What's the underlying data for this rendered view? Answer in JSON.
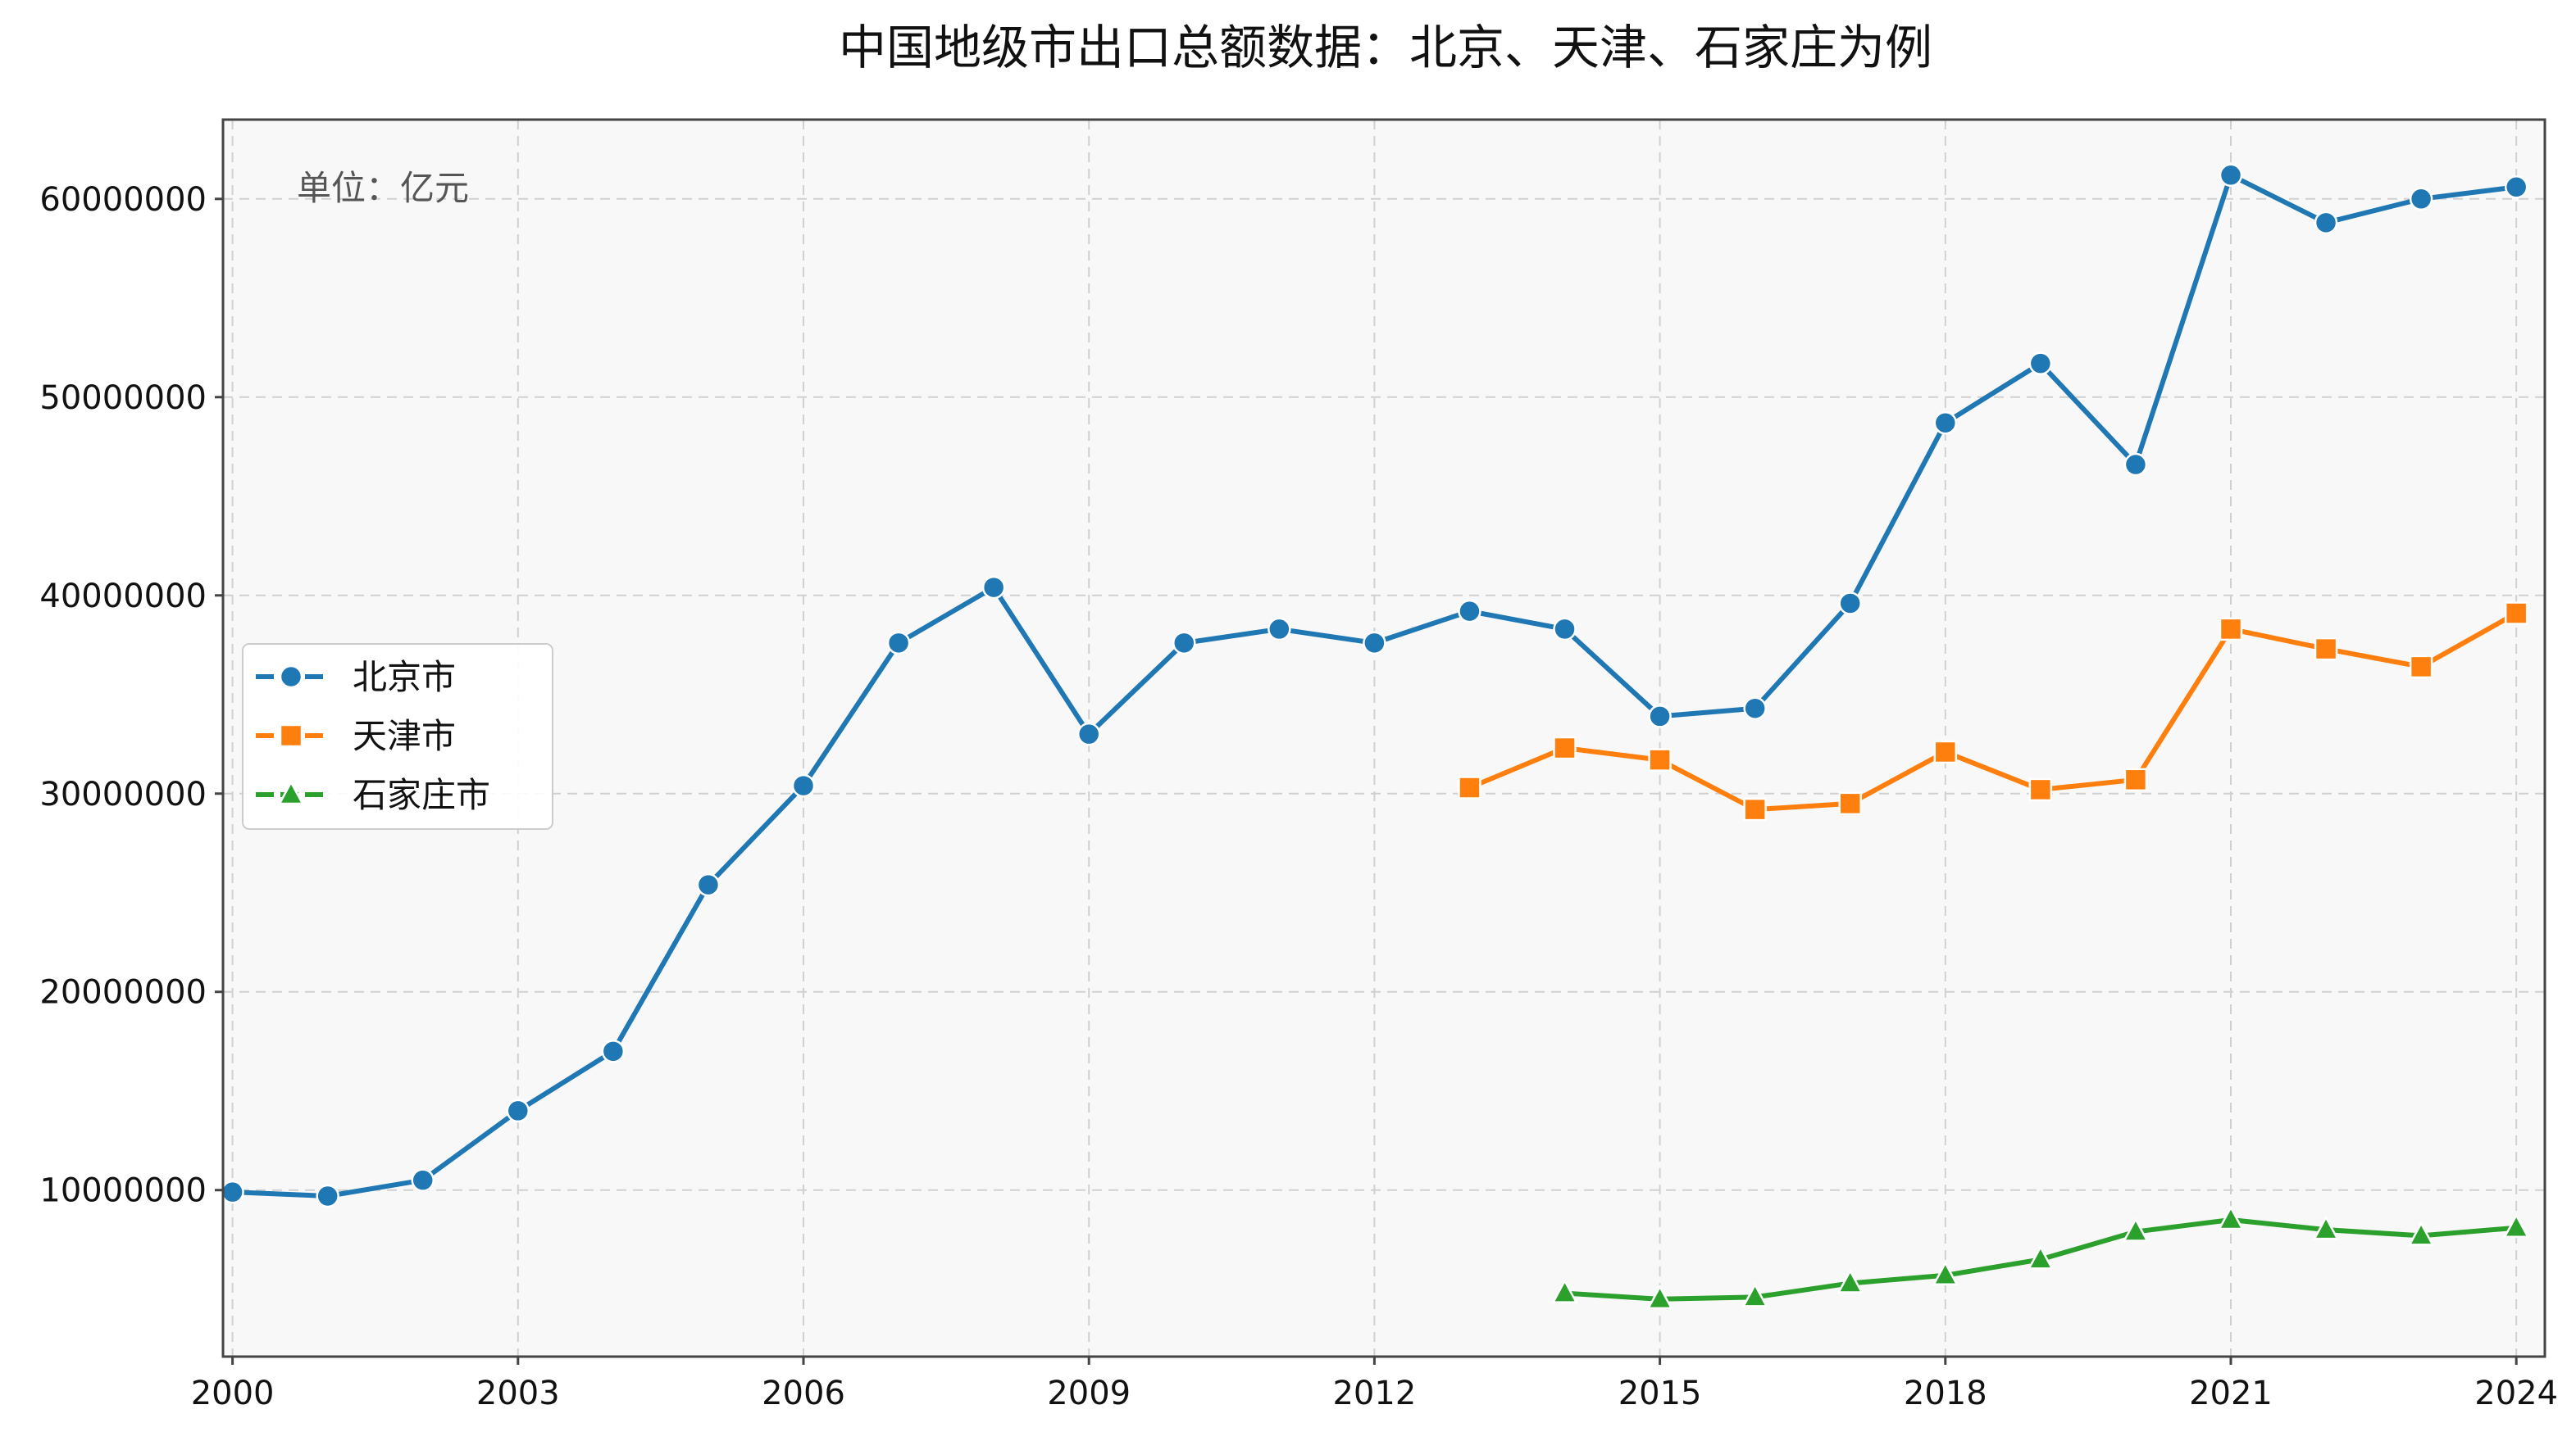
{
  "chart_data": {
    "type": "line",
    "title": "中国地级市出口总额数据：北京、天津、石家庄为例",
    "annotation": "单位：亿元",
    "xlabel": "",
    "ylabel": "",
    "xlim": [
      1999.9,
      2024.3
    ],
    "ylim": [
      1600000,
      64000000
    ],
    "xticks": [
      2000,
      2003,
      2006,
      2009,
      2012,
      2015,
      2018,
      2021,
      2024
    ],
    "yticks": [
      10000000,
      20000000,
      30000000,
      40000000,
      50000000,
      60000000
    ],
    "xtick_labels": [
      "2000",
      "2003",
      "2006",
      "2009",
      "2012",
      "2015",
      "2018",
      "2021",
      "2024"
    ],
    "ytick_labels": [
      "10000000",
      "20000000",
      "30000000",
      "40000000",
      "50000000",
      "60000000"
    ],
    "grid": true,
    "legend_position": "center-left",
    "series": [
      {
        "name": "北京市",
        "color": "#1f77b4",
        "marker": "circle",
        "x": [
          2000,
          2001,
          2002,
          2003,
          2004,
          2005,
          2006,
          2007,
          2008,
          2009,
          2010,
          2011,
          2012,
          2013,
          2014,
          2015,
          2016,
          2017,
          2018,
          2019,
          2020,
          2021,
          2022,
          2023,
          2024
        ],
        "values": [
          9900000,
          9700000,
          10500000,
          14000000,
          17000000,
          25400000,
          30400000,
          37600000,
          40400000,
          33000000,
          37600000,
          38300000,
          37600000,
          39200000,
          38300000,
          33900000,
          34300000,
          39600000,
          48700000,
          51700000,
          46600000,
          61200000,
          58800000,
          60000000,
          60600000
        ]
      },
      {
        "name": "天津市",
        "color": "#ff7f0e",
        "marker": "square",
        "x": [
          2013,
          2014,
          2015,
          2016,
          2017,
          2018,
          2019,
          2020,
          2021,
          2022,
          2023,
          2024
        ],
        "values": [
          30300000,
          32300000,
          31700000,
          29200000,
          29500000,
          32100000,
          30200000,
          30700000,
          38300000,
          37300000,
          36400000,
          39100000
        ]
      },
      {
        "name": "石家庄市",
        "color": "#2ca02c",
        "marker": "triangle",
        "x": [
          2014,
          2015,
          2016,
          2017,
          2018,
          2019,
          2020,
          2021,
          2022,
          2023,
          2024
        ],
        "values": [
          4800000,
          4500000,
          4600000,
          5300000,
          5700000,
          6500000,
          7900000,
          8500000,
          8000000,
          7700000,
          8100000
        ]
      }
    ]
  }
}
